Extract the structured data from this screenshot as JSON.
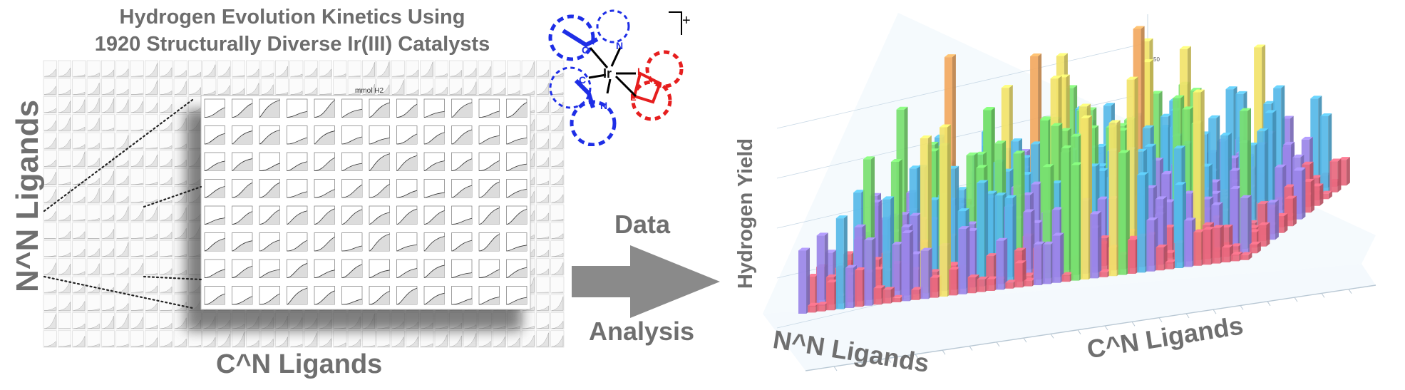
{
  "title": {
    "line1": "Hydrogen Evolution Kinetics Using",
    "line2": "1920 Structurally Diverse Ir(III) Catalysts"
  },
  "left_panel": {
    "y_label": "N^N Ligands",
    "x_label": "C^N Ligands",
    "inset_header": "mmol H2",
    "inset_rows": 8,
    "inset_cols": 12
  },
  "arrow": {
    "top_label": "Data",
    "bottom_label": "Analysis",
    "color": "#8a8a8a"
  },
  "molecule": {
    "metal": "Ir",
    "charge": "+",
    "ligand_c_label": "C",
    "ligand_n_label": "N",
    "ligand_l_label": "L",
    "cn_color": "#1e2ee6",
    "ll_color": "#e61e1e"
  },
  "right_panel": {
    "y_label": "Hydrogen Yield",
    "x_label": "C^N Ligands",
    "depth_label": "N^N Ligands",
    "tick_label": "50",
    "band_colors": [
      "#e8687e",
      "#9a86e8",
      "#56b8e8",
      "#78e070",
      "#f2e36a",
      "#f2a860"
    ]
  }
}
